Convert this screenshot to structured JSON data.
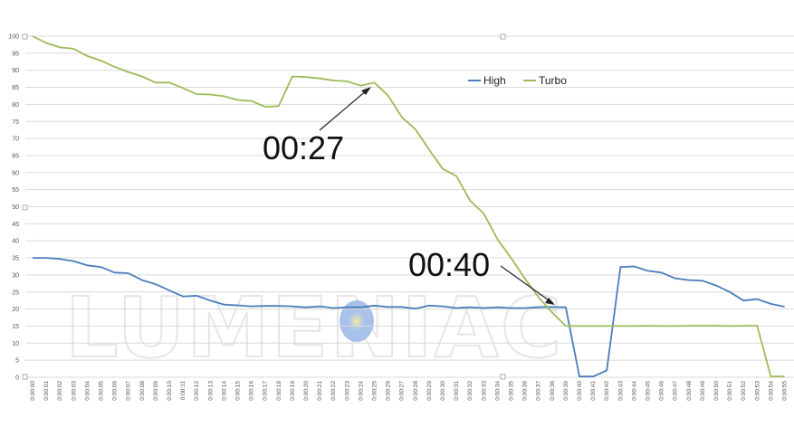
{
  "watermark": "LUMENIAC",
  "chart_data": {
    "type": "line",
    "title": "",
    "xlabel": "",
    "ylabel": "",
    "ylim": [
      0,
      100
    ],
    "yticks": [
      0,
      5,
      10,
      15,
      20,
      25,
      30,
      35,
      40,
      45,
      50,
      55,
      60,
      65,
      70,
      75,
      80,
      85,
      90,
      95,
      100
    ],
    "grid": true,
    "legend_position": "top-right",
    "categories": [
      "0:00:00",
      "0:00:01",
      "0:00:02",
      "0:00:03",
      "0:00:04",
      "0:00:05",
      "0:00:06",
      "0:00:07",
      "0:00:08",
      "0:00:09",
      "0:00:10",
      "0:00:11",
      "0:00:12",
      "0:00:13",
      "0:00:14",
      "0:00:15",
      "0:00:16",
      "0:00:17",
      "0:00:18",
      "0:00:19",
      "0:00:20",
      "0:00:21",
      "0:00:22",
      "0:00:23",
      "0:00:24",
      "0:00:25",
      "0:00:26",
      "0:00:27",
      "0:00:28",
      "0:00:29",
      "0:00:30",
      "0:00:31",
      "0:00:32",
      "0:00:33",
      "0:00:34",
      "0:00:35",
      "0:00:36",
      "0:00:37",
      "0:00:38",
      "0:00:39",
      "0:00:40",
      "0:00:41",
      "0:00:42",
      "0:00:43",
      "0:00:44",
      "0:00:45",
      "0:00:46",
      "0:00:47",
      "0:00:48",
      "0:00:49",
      "0:00:50",
      "0:00:51",
      "0:00:52",
      "0:00:53",
      "0:00:54",
      "0:00:55"
    ],
    "series": [
      {
        "name": "High",
        "color": "#4a7ebb",
        "values": [
          35,
          35,
          34.7,
          34,
          32.8,
          32.3,
          30.7,
          30.5,
          28.5,
          27.3,
          25.5,
          23.7,
          23.9,
          22.5,
          21.3,
          21.1,
          20.8,
          20.9,
          20.9,
          20.8,
          20.5,
          20.8,
          20.3,
          20.5,
          20.5,
          21,
          20.6,
          20.6,
          20.1,
          21,
          20.8,
          20.3,
          20.5,
          20.3,
          20.5,
          20.3,
          20.3,
          20.5,
          20.6,
          20.5,
          0.2,
          0.2,
          2,
          32.3,
          32.5,
          31.2,
          30.7,
          29,
          28.5,
          28.3,
          26.9,
          25,
          22.5,
          22.9,
          21.5,
          20.7
        ]
      },
      {
        "name": "Turbo",
        "color": "#9bbb59",
        "values": [
          100,
          98,
          96.7,
          96.3,
          94.2,
          92.8,
          91,
          89.5,
          88.2,
          86.4,
          86.4,
          84.8,
          83,
          82.9,
          82.4,
          81.3,
          81,
          79.3,
          79.5,
          88.2,
          88,
          87.6,
          87,
          86.8,
          85.5,
          86.4,
          82.6,
          76.3,
          72.7,
          66.8,
          61.1,
          59,
          51.8,
          48,
          40.5,
          35,
          29,
          23.5,
          19,
          15,
          15,
          15,
          15,
          15,
          15,
          15.1,
          15,
          15,
          15.1,
          15.1,
          15.1,
          15,
          15.1,
          15.1,
          0.2,
          0.2
        ]
      }
    ],
    "annotations": [
      {
        "text": "00:27",
        "points_to": "0:00:25"
      },
      {
        "text": "00:40",
        "points_to": "0:00:38"
      }
    ]
  }
}
